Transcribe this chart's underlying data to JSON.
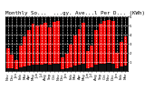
{
  "title_text": "Monthly So...  ...gy. Ave...l Per D... (KWh) Per ...rr...t (KW)",
  "months": [
    "Nov",
    "Dec",
    "Jan",
    "Feb",
    "Mar",
    "Apr",
    "May",
    "Jun",
    "Jul",
    "Aug",
    "Sep",
    "Oct",
    "Nov",
    "Dec",
    "Jan",
    "Feb",
    "Mar",
    "Apr",
    "May",
    "Jun",
    "Jul",
    "Aug",
    "Sep",
    "Oct",
    "Nov",
    "Dec",
    "Jan",
    "Feb",
    "Mar"
  ],
  "red_values": [
    2.5,
    1.8,
    1.2,
    2.8,
    3.8,
    4.5,
    5.2,
    5.0,
    5.1,
    5.3,
    4.8,
    5.4,
    5.5,
    1.5,
    1.9,
    2.9,
    3.9,
    4.6,
    5.3,
    2.2,
    2.8,
    4.5,
    5.2,
    5.5,
    5.6,
    5.5,
    2.0,
    3.2,
    3.8
  ],
  "dark_values": [
    0.35,
    0.28,
    0.18,
    0.42,
    0.55,
    0.65,
    0.75,
    0.72,
    0.74,
    0.78,
    0.7,
    0.8,
    0.82,
    0.22,
    0.28,
    0.45,
    0.6,
    0.7,
    0.8,
    0.3,
    0.4,
    0.68,
    0.78,
    0.85,
    0.86,
    0.84,
    0.3,
    0.48,
    0.58
  ],
  "bar_color": "#EE0000",
  "dark_color": "#111111",
  "bg_color": "#FFFFFF",
  "plot_bg": "#000000",
  "grid_color": "#FFFFFF",
  "text_color": "#000000",
  "ylim": [
    0,
    6
  ],
  "yticks": [
    1,
    2,
    3,
    4,
    5,
    6
  ],
  "title_fontsize": 4.2,
  "tick_fontsize": 2.8,
  "legend_fontsize": 3.0
}
